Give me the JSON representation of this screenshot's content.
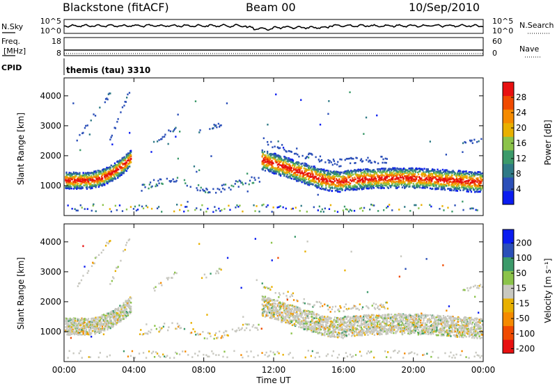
{
  "header": {
    "station": "Blackstone (fitACF)",
    "beam": "Beam 00",
    "date": "10/Sep/2010"
  },
  "noise_panel": {
    "left_label": "N.Sky",
    "right_label": "N.Search",
    "left_ticks": [
      "10^5",
      "10^0"
    ],
    "right_ticks": [
      "10^5",
      "10^0"
    ]
  },
  "freq_panel": {
    "left_label_line1": "Freq.",
    "left_label_line2": "[MHz]",
    "right_label": "Nave",
    "left_ticks": [
      "18",
      "8"
    ],
    "right_ticks": [
      "60",
      "0"
    ]
  },
  "cpid": {
    "label": "CPID",
    "value": "themis (tau) 3310"
  },
  "colors": {
    "power_scale": [
      "#0a1cf0",
      "#2b4fb8",
      "#2f7a86",
      "#3c9a6a",
      "#8bc34a",
      "#e8b000",
      "#f58a00",
      "#f04a00",
      "#e81010"
    ],
    "velocity_scale": [
      "#e81010",
      "#f04a00",
      "#f58a00",
      "#e8b000",
      "#c8c8c0",
      "#8bc34a",
      "#3c9a6a",
      "#2b4fb8",
      "#0a1cf0"
    ]
  },
  "chart_data": [
    {
      "type": "heatmap",
      "title": "",
      "xlabel": "",
      "ylabel": "Slant Range [km]",
      "x_ticks": [
        "00:00",
        "04:00",
        "08:00",
        "12:00",
        "16:00",
        "20:00",
        "00:00"
      ],
      "xlim_hours": [
        0,
        24
      ],
      "ylim": [
        0,
        4600
      ],
      "y_ticks": [
        1000,
        2000,
        3000,
        4000
      ],
      "colorbar": {
        "label": "Power [dB]",
        "ticks": [
          4,
          8,
          12,
          16,
          20,
          24,
          28
        ],
        "range": [
          0,
          32
        ]
      },
      "regions": [
        {
          "start_h": 0.1,
          "end_h": 3.8,
          "range_km": [
            900,
            1800
          ],
          "level": "high"
        },
        {
          "start_h": 0.6,
          "end_h": 2.6,
          "range_km": [
            2500,
            4100
          ],
          "level": "low"
        },
        {
          "start_h": 4.2,
          "end_h": 11.2,
          "range_km": [
            850,
            1400
          ],
          "level": "low"
        },
        {
          "start_h": 11.3,
          "end_h": 24.0,
          "range_km": [
            700,
            2200
          ],
          "level": "high"
        },
        {
          "start_h": 5.0,
          "end_h": 9.0,
          "range_km": [
            2400,
            3300
          ],
          "level": "low"
        }
      ]
    },
    {
      "type": "heatmap",
      "title": "",
      "xlabel": "Time UT",
      "ylabel": "Slant Range [km]",
      "x_ticks": [
        "00:00",
        "04:00",
        "08:00",
        "12:00",
        "16:00",
        "20:00",
        "00:00"
      ],
      "xlim_hours": [
        0,
        24
      ],
      "ylim": [
        0,
        4600
      ],
      "y_ticks": [
        1000,
        2000,
        3000,
        4000
      ],
      "colorbar": {
        "label": "Velocity [m s⁻¹]",
        "ticks": [
          200,
          100,
          50,
          15,
          -15,
          -50,
          -100,
          -200
        ],
        "range": [
          -250,
          250
        ]
      },
      "regions": [
        {
          "start_h": 0.1,
          "end_h": 3.8,
          "range_km": [
            900,
            1800
          ],
          "level": "ground"
        },
        {
          "start_h": 11.3,
          "end_h": 24.0,
          "range_km": [
            700,
            2200
          ],
          "level": "ground"
        }
      ]
    }
  ]
}
